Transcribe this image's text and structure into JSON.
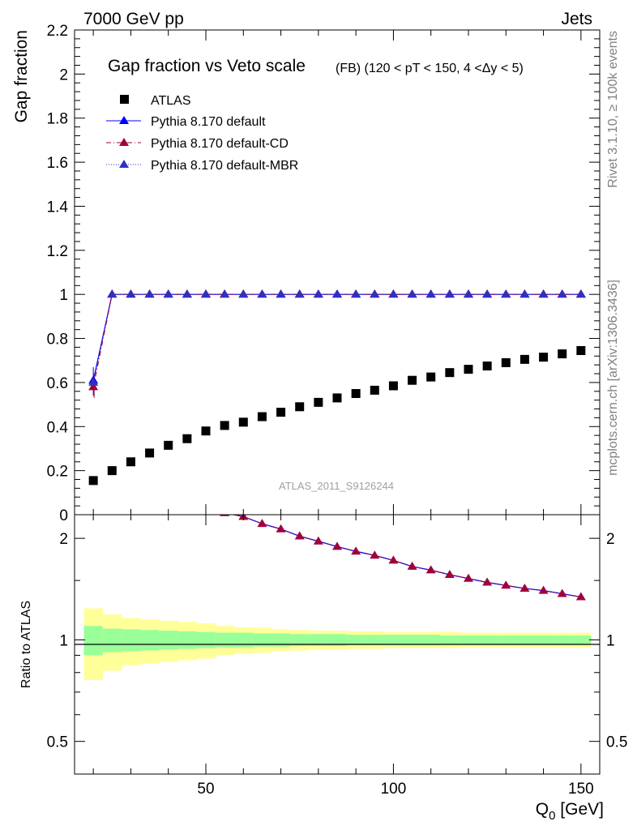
{
  "header": {
    "left": "7000 GeV pp",
    "right": "Jets"
  },
  "side_labels": {
    "rivet": "Rivet 3.1.10, ≥ 100k events",
    "mcplots": "mcplots.cern.ch [arXiv:1306.3436]"
  },
  "watermark": "ATLAS_2011_S9126244",
  "colors": {
    "atlas": "#000000",
    "default": "#0000ff",
    "cd": "#a0003c",
    "mbr": "#3030c0",
    "band_inner": "#99ff99",
    "band_outer": "#ffff99"
  },
  "chart_data": [
    {
      "type": "scatter",
      "title": "Gap fraction vs Veto scale",
      "subtitle": "(FB) (120 < pT < 150, 4 <Δy < 5)",
      "xlabel": "Q0 [GeV]",
      "ylabel": "Gap fraction",
      "xlim": [
        15,
        155
      ],
      "ylim": [
        0,
        2.2
      ],
      "yticks": [
        0,
        0.2,
        0.4,
        0.6,
        0.8,
        1,
        1.2,
        1.4,
        1.6,
        1.8,
        2,
        2.2
      ],
      "ytick_labels": [
        "0",
        "0.2",
        "0.4",
        "0.6",
        "0.8",
        "1",
        "1.2",
        "1.4",
        "1.6",
        "1.8",
        "2",
        "2.2"
      ],
      "x": [
        20,
        25,
        30,
        35,
        40,
        45,
        50,
        55,
        60,
        65,
        70,
        75,
        80,
        85,
        90,
        95,
        100,
        105,
        110,
        115,
        120,
        125,
        130,
        135,
        140,
        145,
        150
      ],
      "series": [
        {
          "name": "ATLAS",
          "marker": "square",
          "values": [
            0.155,
            0.2,
            0.24,
            0.28,
            0.315,
            0.345,
            0.38,
            0.405,
            0.42,
            0.445,
            0.465,
            0.49,
            0.51,
            0.53,
            0.55,
            0.565,
            0.585,
            0.61,
            0.625,
            0.645,
            0.66,
            0.675,
            0.69,
            0.705,
            0.715,
            0.73,
            0.745
          ]
        },
        {
          "name": "Pythia 8.170 default",
          "marker": "triangle",
          "line": "solid",
          "values": [
            0.61,
            1,
            1,
            1,
            1,
            1,
            1,
            1,
            1,
            1,
            1,
            1,
            1,
            1,
            1,
            1,
            1,
            1,
            1,
            1,
            1,
            1,
            1,
            1,
            1,
            1,
            1
          ]
        },
        {
          "name": "Pythia 8.170 default-CD",
          "marker": "triangle",
          "line": "dashdot",
          "values": [
            0.58,
            1,
            1,
            1,
            1,
            1,
            1,
            1,
            1,
            1,
            1,
            1,
            1,
            1,
            1,
            1,
            1,
            1,
            1,
            1,
            1,
            1,
            1,
            1,
            1,
            1,
            1
          ]
        },
        {
          "name": "Pythia 8.170 default-MBR",
          "marker": "triangle",
          "line": "dotted",
          "values": [
            0.6,
            1,
            1,
            1,
            1,
            1,
            1,
            1,
            1,
            1,
            1,
            1,
            1,
            1,
            1,
            1,
            1,
            1,
            1,
            1,
            1,
            1,
            1,
            1,
            1,
            1,
            1
          ]
        }
      ],
      "legend": [
        "ATLAS",
        "Pythia 8.170 default",
        "Pythia 8.170 default-CD",
        "Pythia 8.170 default-MBR"
      ]
    },
    {
      "type": "line",
      "ylabel": "Ratio to ATLAS",
      "xlabel": "Q0 [GeV]",
      "xlim": [
        15,
        155
      ],
      "ylim": [
        0.4,
        2.35
      ],
      "yscale": "log",
      "yticks": [
        0.5,
        1,
        2
      ],
      "ytick_labels": [
        "0.5",
        "1",
        "2"
      ],
      "xticks": [
        50,
        100,
        150
      ],
      "xtick_labels": [
        "50",
        "100",
        "150"
      ],
      "x": [
        55,
        60,
        65,
        70,
        75,
        80,
        85,
        90,
        95,
        100,
        105,
        110,
        115,
        120,
        125,
        130,
        135,
        140,
        145,
        150
      ],
      "ratio_values": [
        2.38,
        2.32,
        2.21,
        2.13,
        2.03,
        1.96,
        1.89,
        1.83,
        1.78,
        1.72,
        1.65,
        1.61,
        1.56,
        1.52,
        1.48,
        1.45,
        1.42,
        1.4,
        1.37,
        1.34
      ],
      "band_edges": [
        17.5,
        22.5,
        27.5,
        32.5,
        37.5,
        42.5,
        47.5,
        52.5,
        57.5,
        62.5,
        67.5,
        72.5,
        77.5,
        82.5,
        87.5,
        92.5,
        97.5,
        102.5,
        107.5,
        112.5,
        117.5,
        122.5,
        127.5,
        132.5,
        137.5,
        142.5,
        147.5,
        152.5
      ],
      "band_inner_hw": [
        0.1,
        0.08,
        0.075,
        0.07,
        0.065,
        0.06,
        0.055,
        0.05,
        0.05,
        0.045,
        0.045,
        0.04,
        0.04,
        0.04,
        0.035,
        0.035,
        0.035,
        0.035,
        0.035,
        0.03,
        0.03,
        0.03,
        0.03,
        0.03,
        0.03,
        0.03,
        0.03
      ],
      "band_outer_hw": [
        0.24,
        0.19,
        0.16,
        0.15,
        0.14,
        0.13,
        0.12,
        0.1,
        0.09,
        0.085,
        0.075,
        0.07,
        0.065,
        0.065,
        0.06,
        0.06,
        0.055,
        0.055,
        0.055,
        0.055,
        0.05,
        0.05,
        0.05,
        0.05,
        0.05,
        0.05,
        0.05
      ]
    }
  ]
}
